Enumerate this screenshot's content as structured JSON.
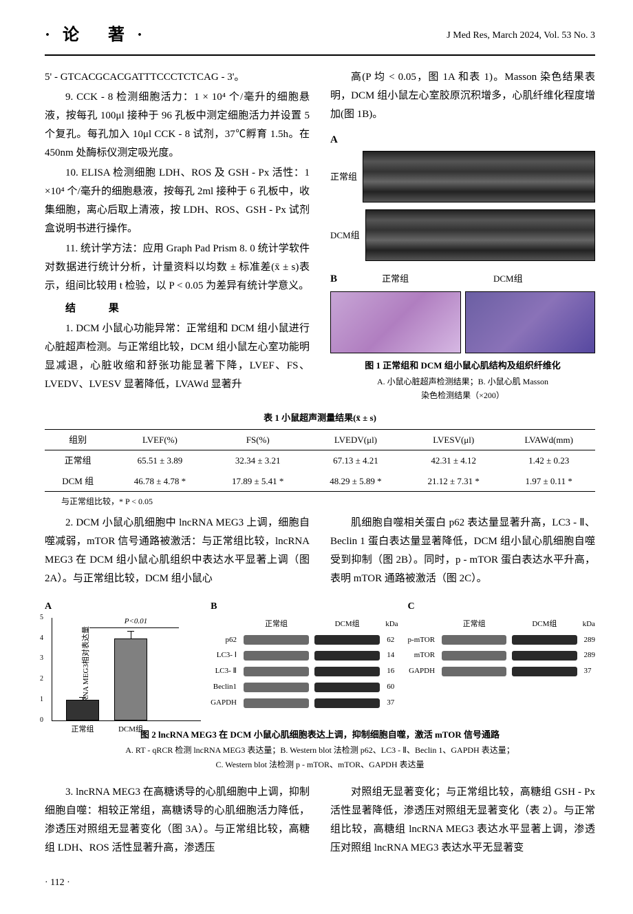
{
  "header": {
    "section": "·论  著·",
    "journal": "J Med Res, March 2024, Vol. 53 No. 3"
  },
  "col1": {
    "primer": "5' - GTCACGCACGATTTCCCTCTCAG - 3'。",
    "p9": "9. CCK - 8 检测细胞活力：1 × 10⁴ 个/毫升的细胞悬液，按每孔 100μl 接种于 96 孔板中测定细胞活力并设置 5 个复孔。每孔加入 10μl CCK - 8 试剂，37℃孵育 1.5h。在 450nm 处酶标仪测定吸光度。",
    "p10": "10. ELISA 检测细胞 LDH、ROS 及 GSH - Px 活性：1 ×10⁴ 个/毫升的细胞悬液，按每孔 2ml 接种于 6 孔板中，收集细胞，离心后取上清液，按 LDH、ROS、GSH - Px 试剂盒说明书进行操作。",
    "p11": "11. 统计学方法：应用 Graph Pad Prism 8. 0 统计学软件对数据进行统计分析，计量资料以均数 ± 标准差(x̄ ± s)表示，组间比较用 t 检验，以 P < 0.05 为差异有统计学意义。",
    "result_heading": "结  果",
    "r1": "1. DCM 小鼠心功能异常：正常组和 DCM 组小鼠进行心脏超声检测。与正常组比较，DCM 组小鼠左心室功能明显减退，心脏收缩和舒张功能显著下降，LVEF、FS、LVEDV、LVESV 显著降低，LVAWd 显著升"
  },
  "col2": {
    "r1b": "高(P 均 < 0.05，图 1A 和表 1)。Masson 染色结果表明，DCM 组小鼠左心室胶原沉积增多，心肌纤维化程度增加(图 1B)。",
    "fig1": {
      "panelA": "A",
      "normal_label": "正常组",
      "dcm_label": "DCM组",
      "panelB": "B",
      "caption": "图 1  正常组和 DCM 组小鼠心肌结构及组织纤维化",
      "subA": "A. 小鼠心脏超声检测结果；B. 小鼠心肌 Masson",
      "subB": "染色检测结果（×200）"
    }
  },
  "table1": {
    "title": "表 1  小鼠超声测量结果(x̄ ± s)",
    "columns": [
      "组别",
      "LVEF(%)",
      "FS(%)",
      "LVEDV(μl)",
      "LVESV(μl)",
      "LVAWd(mm)"
    ],
    "rows": [
      [
        "正常组",
        "65.51 ± 3.89",
        "32.34 ± 3.21",
        "67.13 ± 4.21",
        "42.31 ± 4.12",
        "1.42 ± 0.23"
      ],
      [
        "DCM 组",
        "46.78 ± 4.78 *",
        "17.89 ± 5.41 *",
        "48.29 ± 5.89 *",
        "21.12 ± 7.31 *",
        "1.97 ± 0.11 *"
      ]
    ],
    "note": "与正常组比较，* P < 0.05"
  },
  "section2": {
    "left": "2. DCM 小鼠心肌细胞中 lncRNA MEG3 上调，细胞自噬减弱，mTOR 信号通路被激活：与正常组比较，lncRNA MEG3 在 DCM 组小鼠心肌组织中表达水平显著上调（图 2A）。与正常组比较，DCM 组小鼠心",
    "right": "肌细胞自噬相关蛋白 p62 表达量显著升高，LC3 - Ⅱ、Beclin 1 蛋白表达量显著降低，DCM 组小鼠心肌细胞自噬受到抑制（图 2B）。同时，p - mTOR 蛋白表达水平升高，表明 mTOR 通路被激活（图 2C）。"
  },
  "fig2": {
    "panelA": {
      "tag": "A",
      "type": "bar",
      "ylabel": "lncRNA MEG3相对表达量",
      "categories": [
        "正常组",
        "DCM组"
      ],
      "values": [
        1.0,
        4.0
      ],
      "errors": [
        0.15,
        0.4
      ],
      "ylim": [
        0,
        5
      ],
      "ytick_step": 1,
      "bar_colors": [
        "#333333",
        "#808080"
      ],
      "pvalue": "P<0.01"
    },
    "panelB": {
      "tag": "B",
      "headers": [
        "正常组",
        "DCM组"
      ],
      "kda_label": "kDa",
      "rows": [
        {
          "label": "p62",
          "kda": "62"
        },
        {
          "label": "LC3- Ⅰ",
          "kda": "14"
        },
        {
          "label": "LC3- Ⅱ",
          "kda": "16"
        },
        {
          "label": "Beclin1",
          "kda": "60"
        },
        {
          "label": "GAPDH",
          "kda": "37"
        }
      ]
    },
    "panelC": {
      "tag": "C",
      "headers": [
        "正常组",
        "DCM组"
      ],
      "kda_label": "kDa",
      "rows": [
        {
          "label": "p-mTOR",
          "kda": "289"
        },
        {
          "label": "mTOR",
          "kda": "289"
        },
        {
          "label": "GAPDH",
          "kda": "37"
        }
      ]
    },
    "caption": "图 2  lncRNA MEG3 在 DCM 小鼠心肌细胞表达上调，抑制细胞自噬，激活 mTOR 信号通路",
    "sub1": "A. RT - qRCR 检测 lncRNA MEG3 表达量；B. Western blot 法检测 p62、LC3 - Ⅱ、Beclin 1、GAPDH 表达量；",
    "sub2": "C. Western blot 法检测 p - mTOR、mTOR、GAPDH 表达量"
  },
  "section3": {
    "left": "3. lncRNA MEG3 在高糖诱导的心肌细胞中上调，抑制细胞自噬：相较正常组，高糖诱导的心肌细胞活力降低，渗透压对照组无显著变化（图 3A）。与正常组比较，高糖组 LDH、ROS 活性显著升高，渗透压",
    "right": "对照组无显著变化；与正常组比较，高糖组 GSH - Px 活性显著降低，渗透压对照组无显著变化（表 2）。与正常组比较，高糖组 lncRNA MEG3 表达水平显著上调，渗透压对照组 lncRNA MEG3 表达水平无显著变"
  },
  "pagefoot": "· 112 ·"
}
